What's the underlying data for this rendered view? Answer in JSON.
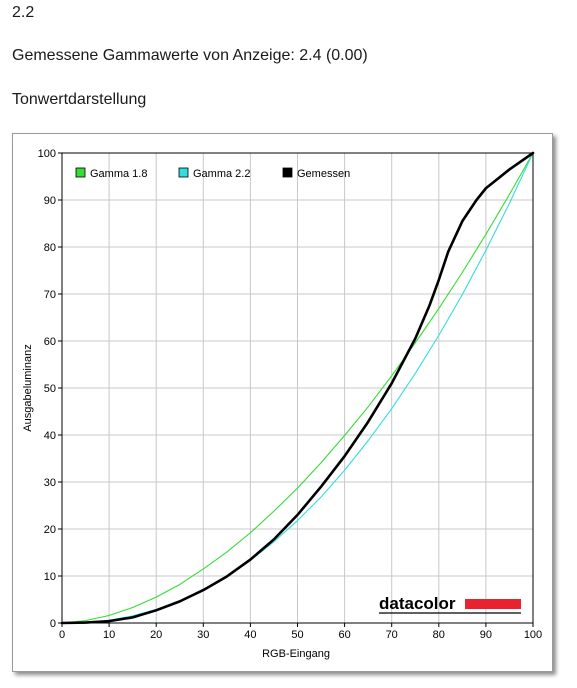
{
  "header": {
    "gamma_target": "2.2",
    "measured_text": "Gemessene Gammawerte von Anzeige: 2.4 (0.00)",
    "section_title": "Tonwertdarstellung"
  },
  "logo_text": "datacolor",
  "colors": {
    "gamma18": "#33dd33",
    "gamma22": "#33dddd",
    "measured": "#000000",
    "grid": "#c8c8c8",
    "logo_bar": "#e8232f"
  },
  "chart_data": {
    "type": "line",
    "xlabel": "RGB-Eingang",
    "ylabel": "Ausgabeluminanz",
    "xlim": [
      0,
      100
    ],
    "ylim": [
      0,
      100
    ],
    "xticks": [
      0,
      10,
      20,
      30,
      40,
      50,
      60,
      70,
      80,
      90,
      100
    ],
    "yticks": [
      0,
      10,
      20,
      30,
      40,
      50,
      60,
      70,
      80,
      90,
      100
    ],
    "grid": true,
    "legend_position": "top-left",
    "series": [
      {
        "name": "Gamma 1.8",
        "color": "#33dd33",
        "x": [
          0,
          5,
          10,
          15,
          20,
          25,
          30,
          35,
          40,
          45,
          50,
          55,
          60,
          65,
          70,
          75,
          80,
          85,
          90,
          95,
          100
        ],
        "y": [
          0,
          0.5,
          1.6,
          3.3,
          5.5,
          8.2,
          11.5,
          15.1,
          19.2,
          23.8,
          28.7,
          34.1,
          39.9,
          46.0,
          52.6,
          59.6,
          66.9,
          74.6,
          82.7,
          91.2,
          100
        ]
      },
      {
        "name": "Gamma 2.2",
        "color": "#33dddd",
        "x": [
          0,
          5,
          10,
          15,
          20,
          25,
          30,
          35,
          40,
          45,
          50,
          55,
          60,
          65,
          70,
          75,
          80,
          85,
          90,
          95,
          100
        ],
        "y": [
          0,
          0.1,
          0.6,
          1.5,
          2.9,
          4.7,
          7.1,
          9.9,
          13.3,
          17.3,
          21.8,
          26.8,
          32.5,
          38.8,
          45.6,
          53.1,
          61.2,
          69.9,
          79.3,
          89.3,
          100
        ]
      },
      {
        "name": "Gemessen",
        "color": "#000000",
        "x": [
          0,
          5,
          10,
          15,
          20,
          25,
          30,
          35,
          40,
          45,
          50,
          55,
          60,
          65,
          70,
          75,
          78,
          80,
          82,
          85,
          88,
          90,
          95,
          100
        ],
        "y": [
          0,
          0.1,
          0.4,
          1.2,
          2.7,
          4.6,
          7.0,
          9.9,
          13.5,
          17.8,
          23.0,
          29.0,
          35.5,
          42.8,
          51.0,
          60.5,
          67.5,
          73.0,
          79.0,
          85.5,
          90.0,
          92.5,
          96.5,
          100
        ]
      }
    ]
  }
}
